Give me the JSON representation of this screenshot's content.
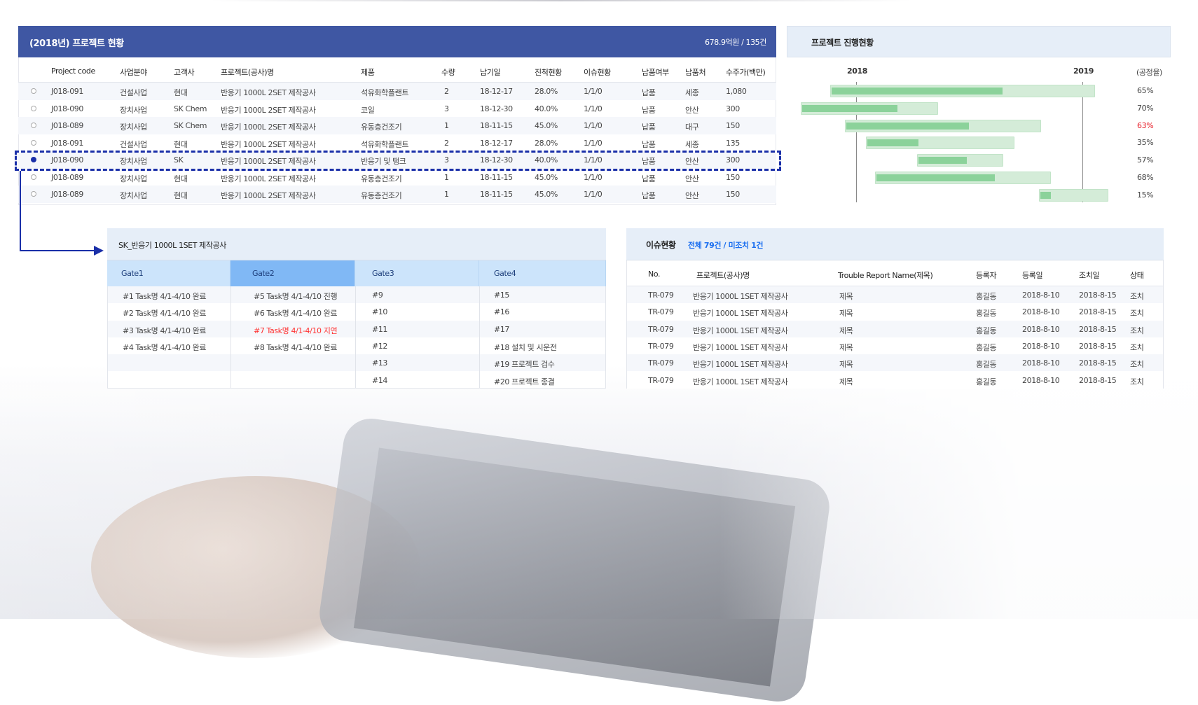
{
  "project_table": {
    "title": "(2018년) 프로젝트 현황",
    "summary": "678.9억원 / 135건",
    "columns": [
      "Project code",
      "사업분야",
      "고객사",
      "프로젝트(공사)명",
      "제품",
      "수량",
      "납기일",
      "진척현황",
      "이슈현황",
      "납품여부",
      "납품처",
      "수주가(백만)"
    ],
    "rows": [
      {
        "selected": false,
        "cells": [
          "J018-091",
          "건설사업",
          "현대",
          "반응기 1000L 2SET 제작공사",
          "석유화학플랜트",
          "2",
          "18-12-17",
          "28.0%",
          "1/1/0",
          "납품",
          "세종",
          "1,080"
        ]
      },
      {
        "selected": false,
        "cells": [
          "J018-090",
          "장치사업",
          "SK Chem",
          "반응기 1000L 2SET 제작공사",
          "코일",
          "3",
          "18-12-30",
          "40.0%",
          "1/1/0",
          "납품",
          "안산",
          "300"
        ]
      },
      {
        "selected": false,
        "cells": [
          "J018-089",
          "장치사업",
          "SK Chem",
          "반응기 1000L 2SET 제작공사",
          "유동층건조기",
          "1",
          "18-11-15",
          "45.0%",
          "1/1/0",
          "납품",
          "대구",
          "150"
        ]
      },
      {
        "selected": false,
        "cells": [
          "J018-091",
          "건설사업",
          "현대",
          "반응기 1000L 2SET 제작공사",
          "석유화학플랜트",
          "2",
          "18-12-17",
          "28.0%",
          "1/1/0",
          "납품",
          "세종",
          "135"
        ]
      },
      {
        "selected": true,
        "cells": [
          "J018-090",
          "장치사업",
          "SK",
          "반응기 1000L 2SET 제작공사",
          "반응기 및 탱크",
          "3",
          "18-12-30",
          "40.0%",
          "1/1/0",
          "납품",
          "안산",
          "300"
        ]
      },
      {
        "selected": false,
        "cells": [
          "J018-089",
          "장치사업",
          "현대",
          "반응기 1000L 2SET 제작공사",
          "유동층건조기",
          "1",
          "18-11-15",
          "45.0%",
          "1/1/0",
          "납품",
          "안산",
          "150"
        ]
      },
      {
        "selected": false,
        "cells": [
          "J018-089",
          "장치사업",
          "현대",
          "반응기 1000L 2SET 제작공사",
          "유동층건조기",
          "1",
          "18-11-15",
          "45.0%",
          "1/1/0",
          "납품",
          "안산",
          "150"
        ]
      }
    ],
    "selection_color": "#1a2fa8"
  },
  "progress_panel": {
    "title": "프로젝트 진행현황",
    "axis_ticks": [
      "2018",
      "2019"
    ],
    "rate_header": "(공정율)",
    "bars": [
      {
        "start": 2017.885,
        "end": 2019.056,
        "rate": "65%",
        "progress": 0.65,
        "alert": false
      },
      {
        "start": 2017.755,
        "end": 2018.362,
        "rate": "70%",
        "progress": 0.7,
        "alert": false
      },
      {
        "start": 2017.95,
        "end": 2018.818,
        "rate": "63%",
        "progress": 0.63,
        "alert": true
      },
      {
        "start": 2018.043,
        "end": 2018.7,
        "rate": "35%",
        "progress": 0.35,
        "alert": false
      },
      {
        "start": 2018.269,
        "end": 2018.65,
        "rate": "57%",
        "progress": 0.57,
        "alert": false
      },
      {
        "start": 2018.084,
        "end": 2018.861,
        "rate": "68%",
        "progress": 0.68,
        "alert": false
      },
      {
        "start": 2018.808,
        "end": 2019.115,
        "rate": "15%",
        "progress": 0.15,
        "alert": false
      }
    ],
    "colors": {
      "bar": "#d4ecd8",
      "fill": "#8bd29a",
      "alert": "#e8202a"
    }
  },
  "gate_panel": {
    "title": "SK_반응기 1000L 1SET 제작공사",
    "gates": [
      {
        "label": "Gate1",
        "active": false,
        "tasks": [
          {
            "text": "#1 Task명 4/1-4/10 완료"
          },
          {
            "text": "#2 Task명 4/1-4/10 완료"
          },
          {
            "text": "#3 Task명 4/1-4/10 완료"
          },
          {
            "text": "#4 Task명 4/1-4/10 완료"
          }
        ]
      },
      {
        "label": "Gate2",
        "active": true,
        "tasks": [
          {
            "text": "#5 Task명 4/1-4/10 진행"
          },
          {
            "text": "#6 Task명 4/1-4/10 완료"
          },
          {
            "text": "#7 Task명 4/1-4/10 지연",
            "alert": true
          },
          {
            "text": "#8 Task명 4/1-4/10 완료"
          }
        ]
      },
      {
        "label": "Gate3",
        "active": false,
        "tasks": [
          {
            "text": "#9"
          },
          {
            "text": "#10"
          },
          {
            "text": "#11"
          },
          {
            "text": "#12"
          },
          {
            "text": "#13"
          },
          {
            "text": "#14"
          }
        ]
      },
      {
        "label": "Gate4",
        "active": false,
        "tasks": [
          {
            "text": "#15"
          },
          {
            "text": "#16"
          },
          {
            "text": "#17"
          },
          {
            "text": "#18  설치 및 시운전"
          },
          {
            "text": "#19  프로젝트 검수"
          },
          {
            "text": "#20  프로젝트 종결"
          }
        ]
      }
    ]
  },
  "issue_panel": {
    "title": "이슈현황",
    "summary": "전체 79건 /  미조치 1건",
    "columns": [
      "No.",
      "프로젝트(공사)명",
      "Trouble Report Name(제목)",
      "등록자",
      "등록일",
      "조치일",
      "상태"
    ],
    "rows": [
      [
        "TR-079",
        "반응기 1000L 1SET 제작공사",
        "제목",
        "홍길동",
        "2018-8-10",
        "2018-8-15",
        "조치"
      ],
      [
        "TR-079",
        "반응기 1000L 1SET 제작공사",
        "제목",
        "홍길동",
        "2018-8-10",
        "2018-8-15",
        "조치"
      ],
      [
        "TR-079",
        "반응기 1000L 1SET 제작공사",
        "제목",
        "홍길동",
        "2018-8-10",
        "2018-8-15",
        "조치"
      ],
      [
        "TR-079",
        "반응기 1000L 1SET 제작공사",
        "제목",
        "홍길동",
        "2018-8-10",
        "2018-8-15",
        "조치"
      ],
      [
        "TR-079",
        "반응기 1000L 1SET 제작공사",
        "제목",
        "홍길동",
        "2018-8-10",
        "2018-8-15",
        "조치"
      ],
      [
        "TR-079",
        "반응기 1000L 1SET 제작공사",
        "제목",
        "홍길동",
        "2018-8-10",
        "2018-8-15",
        "조치"
      ]
    ]
  }
}
